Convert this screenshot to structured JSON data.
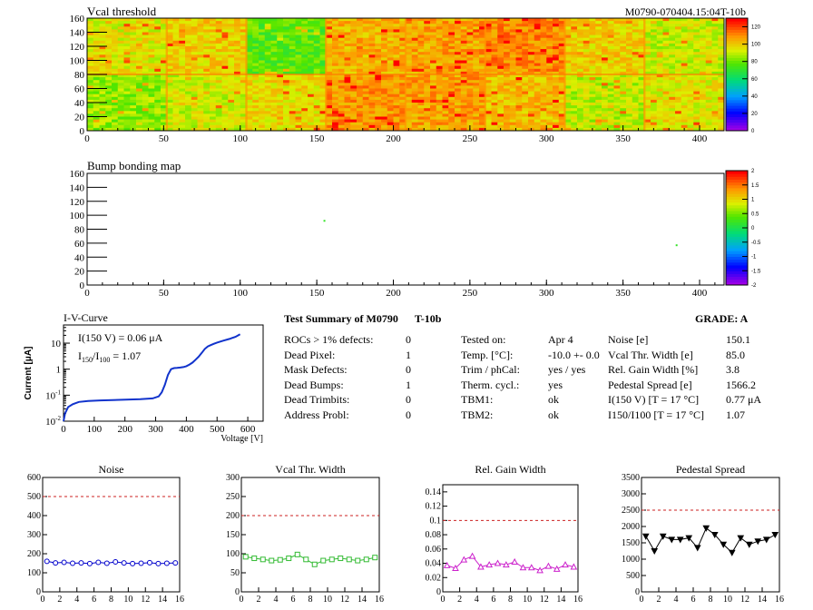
{
  "header": {
    "title": "Vcal threshold",
    "module_id": "M0790-070404.15:04T-10b"
  },
  "bump": {
    "title": "Bump bonding map"
  },
  "heatmap_axes": {
    "x_ticks": [
      "0",
      "50",
      "100",
      "150",
      "200",
      "250",
      "300",
      "350",
      "400"
    ],
    "y_ticks": [
      "0",
      "20",
      "40",
      "60",
      "80",
      "100",
      "120",
      "140",
      "160"
    ],
    "x_range": [
      0,
      416
    ],
    "y_range": [
      0,
      160
    ]
  },
  "vcal_palette": {
    "ticks": [
      "0",
      "20",
      "40",
      "60",
      "80",
      "100",
      "120"
    ]
  },
  "bump_palette": {
    "ticks": [
      "-2",
      "-1.5",
      "-1",
      "-0.5",
      "0",
      "0.5",
      "1",
      "1.5",
      "2"
    ]
  },
  "iv": {
    "title": "I-V-Curve",
    "ylabel": "Current [μA]",
    "xlabel": "Voltage [V]",
    "note1": "I(150 V) = 0.06 μA",
    "note2_a": "I",
    "note2_sub1": "150",
    "note2_b": "/I",
    "note2_sub2": "100",
    "note2_c": " = 1.07",
    "x_ticks": [
      "0",
      "100",
      "200",
      "300",
      "400",
      "500",
      "600"
    ],
    "y_ticks": [
      {
        "base": "10",
        "exp": "-2"
      },
      {
        "base": "10",
        "exp": "-1"
      },
      {
        "base": "1",
        "exp": ""
      },
      {
        "base": "10",
        "exp": ""
      }
    ]
  },
  "summary": {
    "title": "Test Summary of M0790",
    "suffix": "T-10b",
    "grade": "GRADE:  A",
    "left_rows": [
      {
        "label": "ROCs > 1% defects:",
        "value": "0"
      },
      {
        "label": "Dead Pixel:",
        "value": "1"
      },
      {
        "label": "Mask Defects:",
        "value": "0"
      },
      {
        "label": "Dead Bumps:",
        "value": "1"
      },
      {
        "label": "Dead Trimbits:",
        "value": "0"
      },
      {
        "label": "Address Probl:",
        "value": "0"
      }
    ],
    "mid_rows": [
      {
        "label": "Tested on:",
        "value": "Apr 4"
      },
      {
        "label": "Temp. [°C]:",
        "value": "-10.0 +- 0.0"
      },
      {
        "label": "Trim / phCal:",
        "value": "yes / yes"
      },
      {
        "label": "Therm. cycl.:",
        "value": "yes"
      },
      {
        "label": "TBM1:",
        "value": "ok"
      },
      {
        "label": "TBM2:",
        "value": "ok"
      }
    ],
    "right_rows": [
      {
        "label": "Noise [e]",
        "value": "150.1"
      },
      {
        "label": "Vcal Thr. Width [e]",
        "value": "85.0"
      },
      {
        "label": "Rel. Gain Width [%]",
        "value": "3.8"
      },
      {
        "label": "Pedestal Spread [e]",
        "value": "1566.2"
      },
      {
        "label": "I(150 V) [T = 17 °C]",
        "value": "0.77 μA"
      },
      {
        "label": "I150/I100  [T = 17 °C]",
        "value": "1.07"
      }
    ]
  },
  "chart_data": [
    {
      "type": "heatmap",
      "title": "Vcal threshold",
      "xlim": [
        0,
        416
      ],
      "ylim": [
        0,
        160
      ],
      "zlim": [
        0,
        130
      ],
      "note": "16 ROC blocks (8 columns x 2 rows); mean Vcal level per block",
      "block_levels_top": [
        95,
        100,
        78,
        105,
        108,
        112,
        100,
        92
      ],
      "block_levels_bottom": [
        85,
        92,
        98,
        110,
        108,
        104,
        90,
        96
      ]
    },
    {
      "type": "heatmap",
      "title": "Bump bonding map",
      "xlim": [
        0,
        416
      ],
      "ylim": [
        0,
        160
      ],
      "zlim": [
        -2,
        2
      ],
      "points": [
        {
          "x": 155,
          "y": 92,
          "z": 0.2
        },
        {
          "x": 385,
          "y": 57,
          "z": 0.2
        }
      ]
    },
    {
      "type": "line",
      "title": "I-V-Curve",
      "xlabel": "Voltage [V]",
      "ylabel": "Current [μA]",
      "log_y": true,
      "xlim": [
        0,
        650
      ],
      "ylim": [
        0.01,
        50
      ],
      "x": [
        0,
        5,
        15,
        30,
        50,
        80,
        120,
        180,
        250,
        290,
        310,
        320,
        330,
        340,
        350,
        360,
        370,
        380,
        390,
        400,
        410,
        420,
        430,
        440,
        450,
        460,
        470,
        480,
        490,
        500,
        520,
        540,
        560,
        575
      ],
      "y": [
        0.01,
        0.02,
        0.035,
        0.045,
        0.055,
        0.06,
        0.063,
        0.066,
        0.07,
        0.075,
        0.09,
        0.13,
        0.25,
        0.6,
        1.0,
        1.1,
        1.12,
        1.15,
        1.2,
        1.3,
        1.5,
        1.8,
        2.3,
        3.0,
        4.2,
        6,
        7.5,
        8.5,
        9.5,
        10.5,
        12.5,
        14.5,
        17.5,
        22
      ]
    },
    {
      "type": "line",
      "title": "Noise",
      "xlim": [
        0,
        16
      ],
      "ylim": [
        0,
        600
      ],
      "x_ticks": [
        "0",
        "2",
        "4",
        "6",
        "8",
        "10",
        "12",
        "14",
        "16"
      ],
      "y_ticks": [
        "0",
        "100",
        "200",
        "300",
        "400",
        "500",
        "600"
      ],
      "threshold": 500,
      "color": "#0000cc",
      "marker": "circle",
      "x": [
        0.5,
        1.5,
        2.5,
        3.5,
        4.5,
        5.5,
        6.5,
        7.5,
        8.5,
        9.5,
        10.5,
        11.5,
        12.5,
        13.5,
        14.5,
        15.5
      ],
      "values": [
        160,
        152,
        155,
        150,
        152,
        148,
        155,
        150,
        157,
        152,
        148,
        150,
        153,
        148,
        150,
        152
      ]
    },
    {
      "type": "line",
      "title": "Vcal Thr. Width",
      "xlim": [
        0,
        16
      ],
      "ylim": [
        0,
        300
      ],
      "x_ticks": [
        "0",
        "2",
        "4",
        "6",
        "8",
        "10",
        "12",
        "14",
        "16"
      ],
      "y_ticks": [
        "0",
        "50",
        "100",
        "150",
        "200",
        "250",
        "300"
      ],
      "threshold": 200,
      "color": "#33bb33",
      "marker": "square",
      "x": [
        0.5,
        1.5,
        2.5,
        3.5,
        4.5,
        5.5,
        6.5,
        7.5,
        8.5,
        9.5,
        10.5,
        11.5,
        12.5,
        13.5,
        14.5,
        15.5
      ],
      "values": [
        92,
        88,
        85,
        82,
        84,
        88,
        98,
        85,
        72,
        82,
        85,
        88,
        85,
        82,
        85,
        90
      ]
    },
    {
      "type": "line",
      "title": "Rel. Gain Width",
      "xlim": [
        0,
        16
      ],
      "ylim": [
        0,
        0.15
      ],
      "x_ticks": [
        "0",
        "2",
        "4",
        "6",
        "8",
        "10",
        "12",
        "14",
        "16"
      ],
      "y_ticks": [
        "0",
        "0.02",
        "0.04",
        "0.06",
        "0.08",
        "0.1",
        "0.12",
        "0.14"
      ],
      "threshold": 0.1,
      "color": "#cc22cc",
      "marker": "triangle",
      "x": [
        0.5,
        1.5,
        2.5,
        3.5,
        4.5,
        5.5,
        6.5,
        7.5,
        8.5,
        9.5,
        10.5,
        11.5,
        12.5,
        13.5,
        14.5,
        15.5
      ],
      "values": [
        0.037,
        0.033,
        0.045,
        0.05,
        0.035,
        0.038,
        0.04,
        0.038,
        0.042,
        0.034,
        0.034,
        0.03,
        0.036,
        0.032,
        0.038,
        0.035
      ]
    },
    {
      "type": "line",
      "title": "Pedestal Spread",
      "xlim": [
        0,
        16
      ],
      "ylim": [
        0,
        3500
      ],
      "x_ticks": [
        "0",
        "2",
        "4",
        "6",
        "8",
        "10",
        "12",
        "14",
        "16"
      ],
      "y_ticks": [
        "0",
        "500",
        "1000",
        "1500",
        "2000",
        "2500",
        "3000",
        "3500"
      ],
      "threshold": 2500,
      "color": "#000000",
      "marker": "invtriangle",
      "x": [
        0.5,
        1.5,
        2.5,
        3.5,
        4.5,
        5.5,
        6.5,
        7.5,
        8.5,
        9.5,
        10.5,
        11.5,
        12.5,
        13.5,
        14.5,
        15.5
      ],
      "values": [
        1700,
        1250,
        1700,
        1600,
        1600,
        1650,
        1350,
        1950,
        1750,
        1450,
        1200,
        1650,
        1450,
        1550,
        1600,
        1750
      ]
    }
  ]
}
